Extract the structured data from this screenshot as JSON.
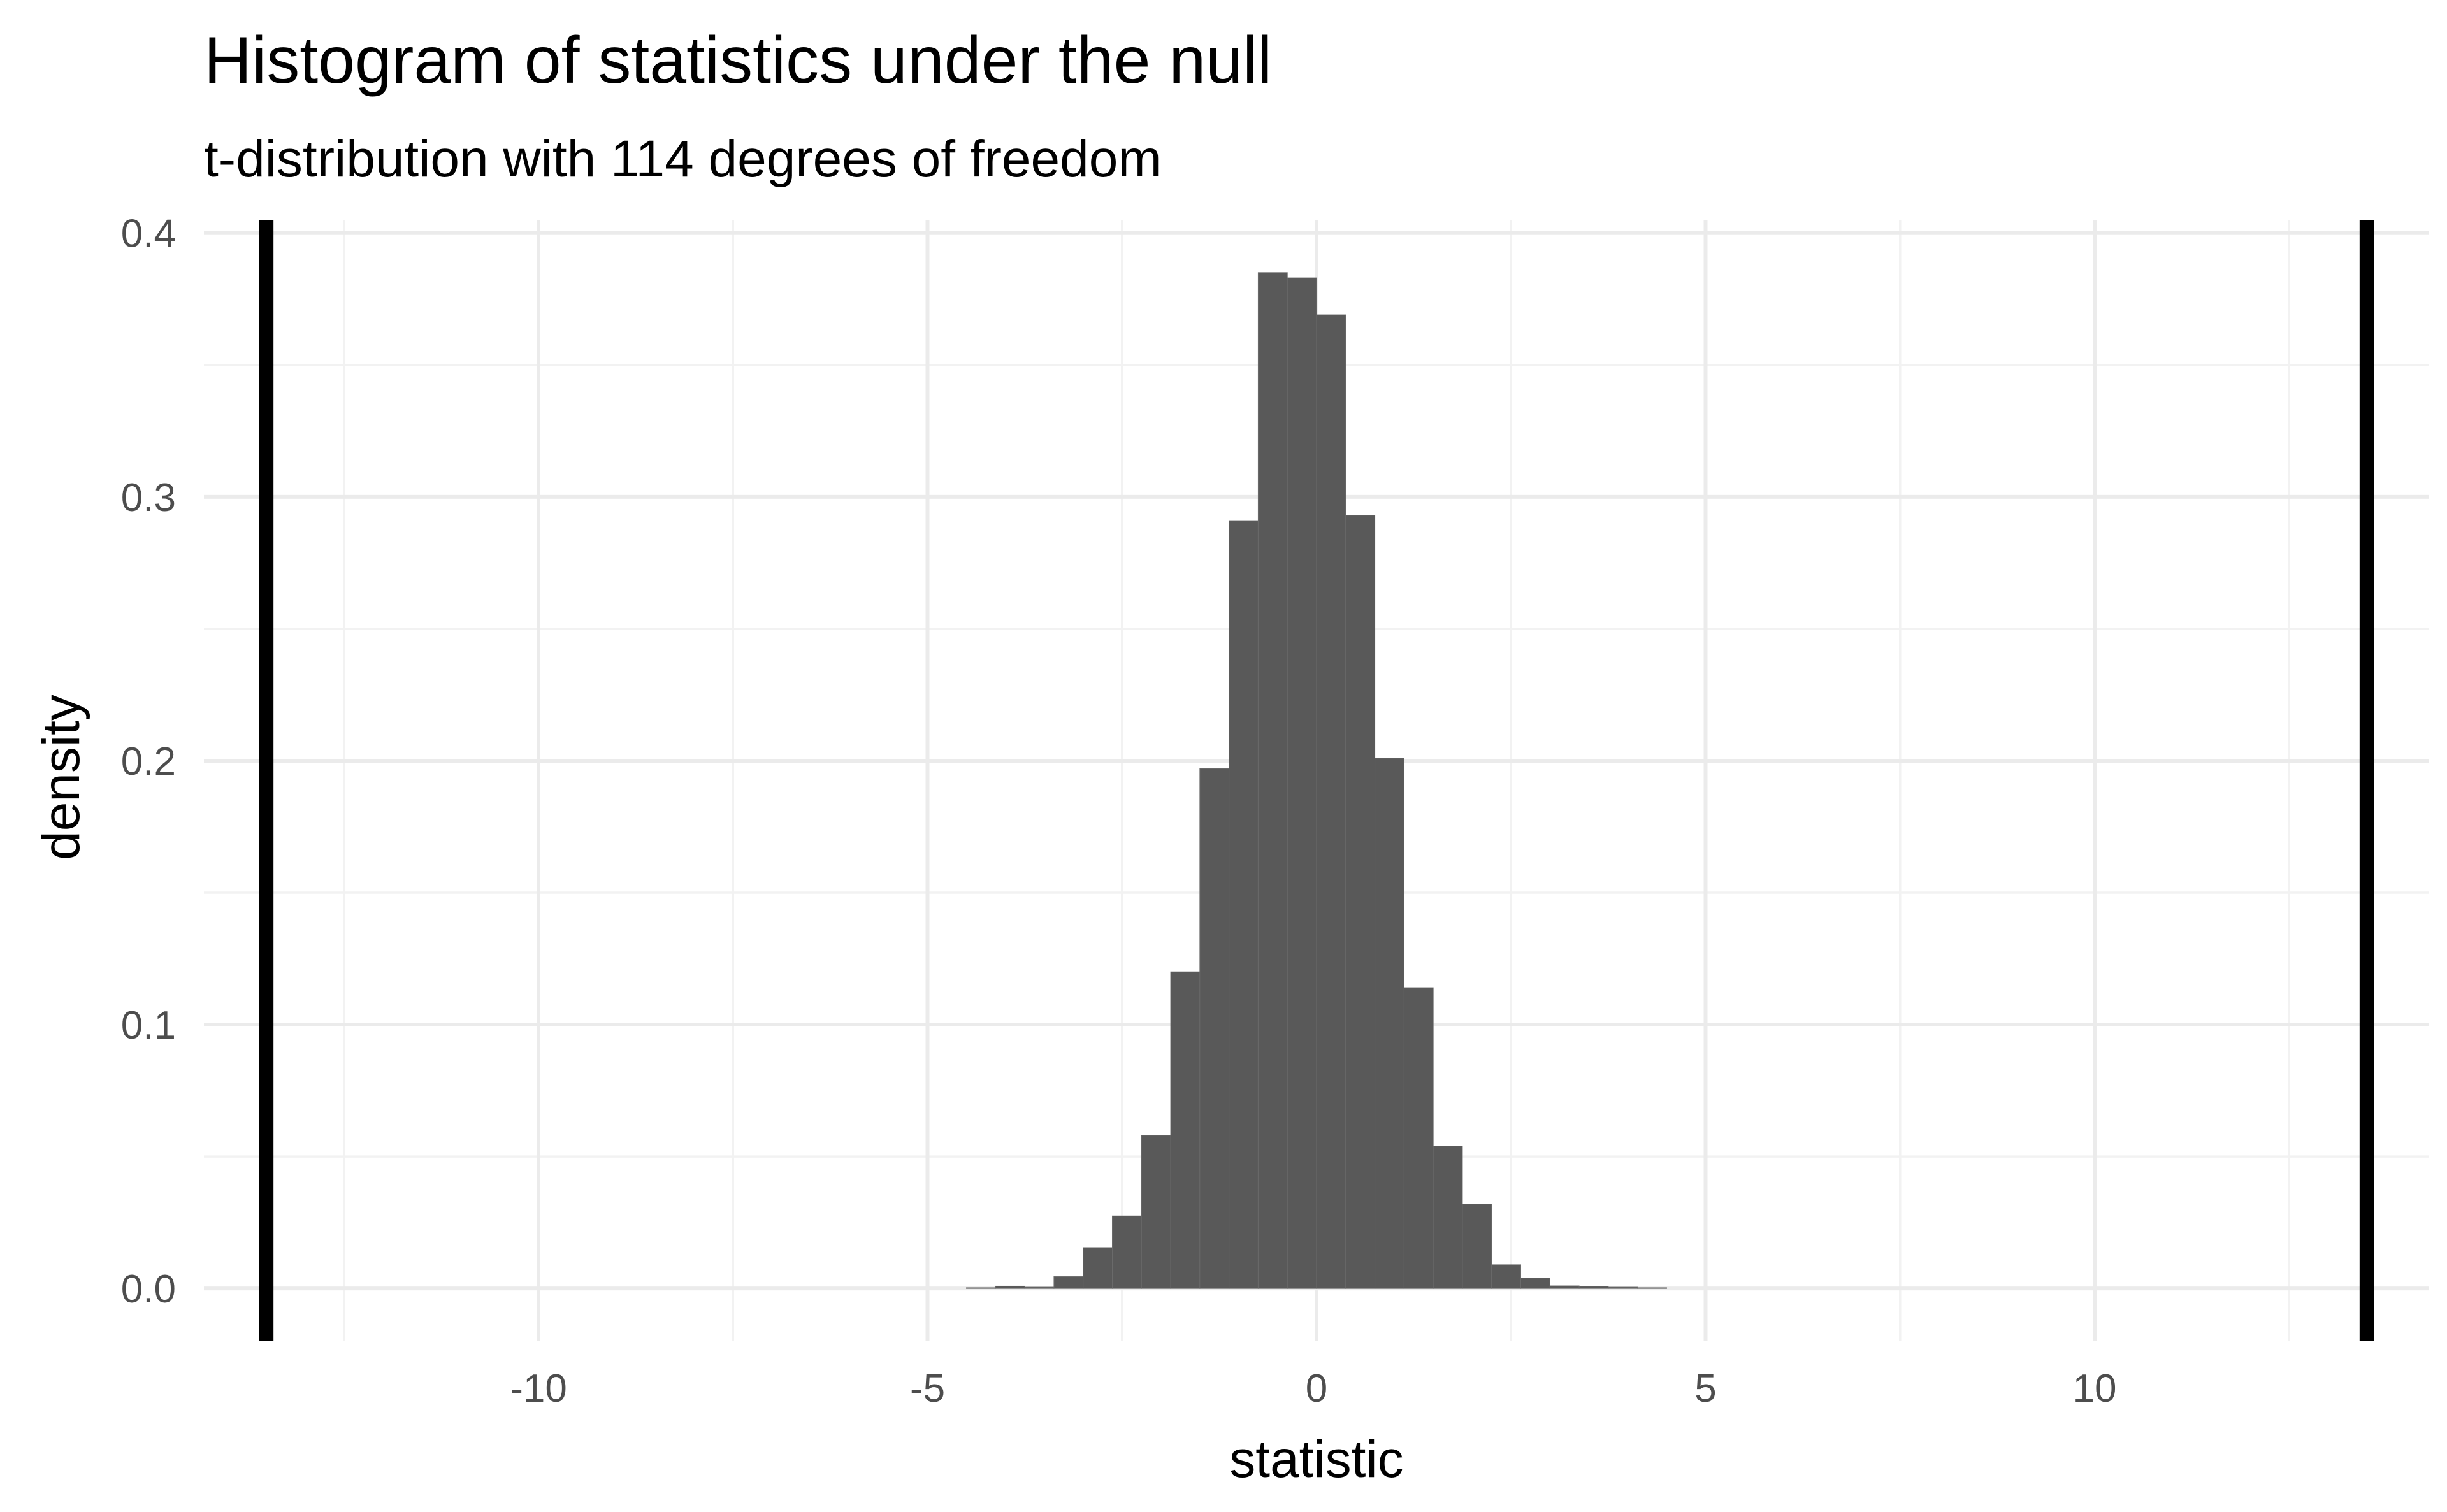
{
  "chart_data": {
    "type": "bar",
    "title": "Histogram of statistics under the null",
    "subtitle": "t-distribution with 114 degrees of freedom",
    "xlabel": "statistic",
    "ylabel": "density",
    "xlim": [
      -14.3,
      14.3
    ],
    "ylim": [
      -0.02,
      0.405
    ],
    "x_ticks": [
      -10,
      -5,
      0,
      5,
      10
    ],
    "x_tick_labels": [
      "-10",
      "-5",
      "0",
      "5",
      "10"
    ],
    "y_ticks": [
      0.0,
      0.1,
      0.2,
      0.3,
      0.4
    ],
    "y_tick_labels": [
      "0.0",
      "0.1",
      "0.2",
      "0.3",
      "0.4"
    ],
    "grid": true,
    "bar_color": "#595959",
    "bins": [
      {
        "x0": -4.5,
        "x1": -4.125,
        "density": 0.0003
      },
      {
        "x0": -4.125,
        "x1": -3.75,
        "density": 0.0009
      },
      {
        "x0": -3.75,
        "x1": -3.375,
        "density": 0.0005
      },
      {
        "x0": -3.375,
        "x1": -3.0,
        "density": 0.0045
      },
      {
        "x0": -3.0,
        "x1": -2.625,
        "density": 0.0155
      },
      {
        "x0": -2.625,
        "x1": -2.25,
        "density": 0.0275
      },
      {
        "x0": -2.25,
        "x1": -1.875,
        "density": 0.058
      },
      {
        "x0": -1.875,
        "x1": -1.5,
        "density": 0.12
      },
      {
        "x0": -1.5,
        "x1": -1.125,
        "density": 0.197
      },
      {
        "x0": -1.125,
        "x1": -0.75,
        "density": 0.291
      },
      {
        "x0": -0.75,
        "x1": -0.375,
        "density": 0.385
      },
      {
        "x0": -0.375,
        "x1": 0.0,
        "density": 0.383
      },
      {
        "x0": 0.0,
        "x1": 0.375,
        "density": 0.369
      },
      {
        "x0": 0.375,
        "x1": 0.75,
        "density": 0.293
      },
      {
        "x0": 0.75,
        "x1": 1.125,
        "density": 0.201
      },
      {
        "x0": 1.125,
        "x1": 1.5,
        "density": 0.114
      },
      {
        "x0": 1.5,
        "x1": 1.875,
        "density": 0.054
      },
      {
        "x0": 1.875,
        "x1": 2.25,
        "density": 0.032
      },
      {
        "x0": 2.25,
        "x1": 2.625,
        "density": 0.009
      },
      {
        "x0": 2.625,
        "x1": 3.0,
        "density": 0.004
      },
      {
        "x0": 3.0,
        "x1": 3.375,
        "density": 0.001
      },
      {
        "x0": 3.375,
        "x1": 3.75,
        "density": 0.0008
      },
      {
        "x0": 3.75,
        "x1": 4.125,
        "density": 0.0005
      },
      {
        "x0": 4.125,
        "x1": 4.5,
        "density": 0.0003
      }
    ],
    "vlines": [
      {
        "x": -13.5,
        "color": "#000000"
      },
      {
        "x": 13.5,
        "color": "#000000"
      }
    ]
  }
}
